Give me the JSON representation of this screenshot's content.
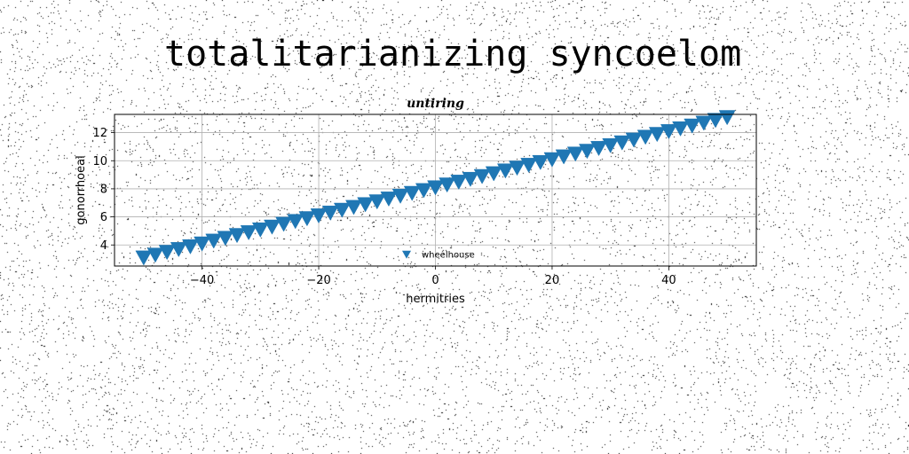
{
  "figure": {
    "suptitle": "totalitarianizing syncoelom"
  },
  "chart_data": {
    "type": "scatter",
    "title": "untiring",
    "xlabel": "hermitries",
    "ylabel": "gonorrhoeal",
    "xlim": [
      -55,
      55
    ],
    "ylim": [
      2.5,
      13.3
    ],
    "xticks": [
      -40,
      -20,
      0,
      20,
      40
    ],
    "xtick_labels": [
      "−40",
      "−20",
      "0",
      "20",
      "40"
    ],
    "yticks": [
      4,
      6,
      8,
      10,
      12
    ],
    "ytick_labels": [
      "4",
      "6",
      "8",
      "10",
      "12"
    ],
    "grid": true,
    "legend_position": "lower center",
    "marker": "triangle-down",
    "series": [
      {
        "name": "wheelhouse",
        "color": "#1f77b4",
        "x": [
          -50,
          -48,
          -46,
          -44,
          -42,
          -40,
          -38,
          -36,
          -34,
          -32,
          -30,
          -28,
          -26,
          -24,
          -22,
          -20,
          -18,
          -16,
          -14,
          -12,
          -10,
          -8,
          -6,
          -4,
          -2,
          0,
          2,
          4,
          6,
          8,
          10,
          12,
          14,
          16,
          18,
          20,
          22,
          24,
          26,
          28,
          30,
          32,
          34,
          36,
          38,
          40,
          42,
          44,
          46,
          48,
          50
        ],
        "y": [
          3.1,
          3.3,
          3.5,
          3.7,
          3.9,
          4.1,
          4.3,
          4.5,
          4.7,
          4.9,
          5.1,
          5.3,
          5.5,
          5.7,
          5.9,
          6.1,
          6.3,
          6.5,
          6.7,
          6.9,
          7.1,
          7.3,
          7.5,
          7.7,
          7.9,
          8.1,
          8.3,
          8.5,
          8.7,
          8.9,
          9.1,
          9.3,
          9.5,
          9.7,
          9.9,
          10.1,
          10.3,
          10.5,
          10.7,
          10.9,
          11.1,
          11.3,
          11.5,
          11.7,
          11.9,
          12.1,
          12.3,
          12.5,
          12.7,
          12.9,
          13.1
        ]
      }
    ]
  }
}
